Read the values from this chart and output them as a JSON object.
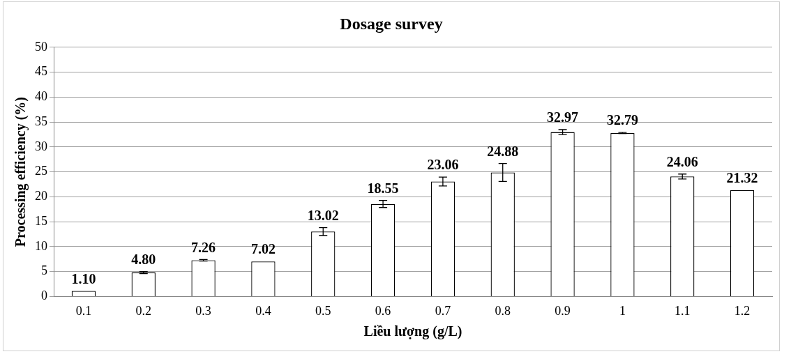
{
  "chart_data": {
    "type": "bar",
    "title": "Dosage survey",
    "xlabel": "Liều lượng (g/L)",
    "ylabel": "Processing efficiency (%)",
    "categories": [
      "0.1",
      "0.2",
      "0.3",
      "0.4",
      "0.5",
      "0.6",
      "0.7",
      "0.8",
      "0.9",
      "1",
      "1.1",
      "1.2"
    ],
    "values": [
      1.1,
      4.8,
      7.26,
      7.02,
      13.02,
      18.55,
      23.06,
      24.88,
      32.97,
      32.79,
      24.06,
      21.32
    ],
    "errors": [
      null,
      0.2,
      0.15,
      null,
      0.8,
      0.7,
      0.9,
      1.8,
      0.5,
      0.1,
      0.5,
      null
    ],
    "color": "#ffffff",
    "ylim": [
      0,
      50
    ],
    "yticks": [
      0,
      5,
      10,
      15,
      20,
      25,
      30,
      35,
      40,
      45,
      50
    ],
    "value_labels": [
      "1.10",
      "4.80",
      "7.26",
      "7.02",
      "13.02",
      "18.55",
      "23.06",
      "24.88",
      "32.97",
      "32.79",
      "24.06",
      "21.32"
    ],
    "grid": "y",
    "legend": false
  }
}
